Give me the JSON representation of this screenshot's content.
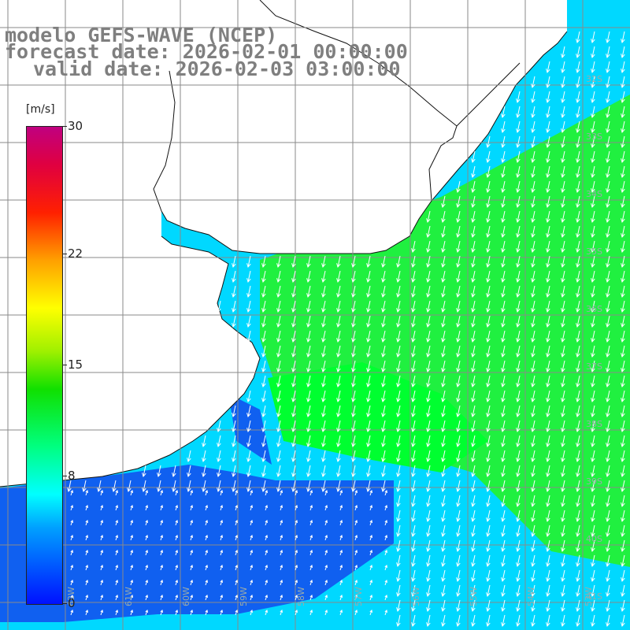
{
  "title": {
    "line1": "modelo GEFS-WAVE (NCEP)",
    "line2": "forecast date: 2026-02-01 00:00:00",
    "line3": "valid date: 2026-02-03 03:00:00"
  },
  "legend": {
    "unit": "[m/s]",
    "ticks": [
      "30",
      "22",
      "15",
      "8",
      "0"
    ],
    "tick_values": [
      30,
      22,
      15,
      8,
      0
    ],
    "range": [
      0,
      30
    ],
    "colors": [
      "#0010ff",
      "#00a0ff",
      "#00ffff",
      "#00ff80",
      "#10e000",
      "#a0f000",
      "#ffff00",
      "#ffa000",
      "#ff2000",
      "#e00040",
      "#c00080"
    ]
  },
  "map": {
    "lat_labels": [
      "32S",
      "33S",
      "34S",
      "35S",
      "36S",
      "37S",
      "38S",
      "39S",
      "40S",
      "41S"
    ],
    "lon_labels": [
      "62W",
      "61W",
      "60W",
      "59W",
      "58W",
      "57W",
      "56W",
      "55W",
      "54W",
      "53W"
    ],
    "ocean_colors": {
      "weak": "#1060f0",
      "mid": "#00d8ff",
      "strong": "#20f040",
      "peak": "#00ff30"
    },
    "land_color": "#ffffff",
    "grid_color": "#8a8a8a",
    "arrow_color": "#ffffff"
  }
}
